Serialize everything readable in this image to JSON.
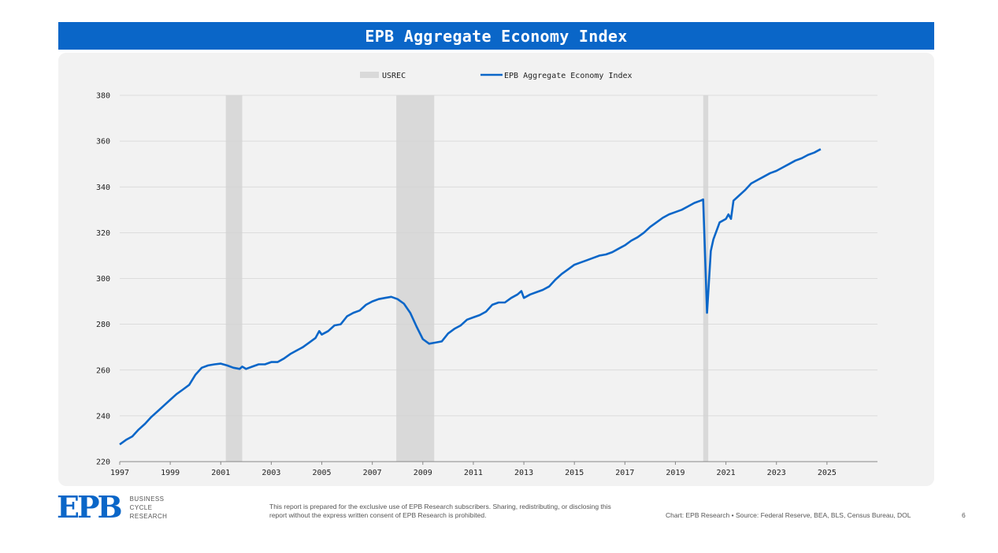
{
  "header": {
    "title": "EPB Aggregate Economy Index"
  },
  "footer": {
    "logo_text": "EPB",
    "logo_line1": "BUSINESS",
    "logo_line2": "CYCLE",
    "logo_line3": "RESEARCH",
    "disclaimer": "This report is prepared for the exclusive use of EPB Research subscribers. Sharing, redistributing, or disclosing this report without the express written consent of EPB Research is prohibited.",
    "source": "Chart: EPB Research  •  Source: Federal Reserve, BEA, BLS, Census Bureau, DOL",
    "page_number": "6"
  },
  "colors": {
    "header_bg": "#0a66c8",
    "line": "#0a66c8",
    "recession": "#d9d9d9",
    "panel_bg": "#f2f2f2"
  },
  "chart_data": {
    "type": "line",
    "title": "EPB Aggregate Economy Index",
    "xlabel": "",
    "ylabel": "",
    "xlim": [
      1997,
      2027
    ],
    "ylim": [
      220,
      380
    ],
    "yticks": [
      220,
      240,
      260,
      280,
      300,
      320,
      340,
      360,
      380
    ],
    "xticks": [
      1997,
      1999,
      2001,
      2003,
      2005,
      2007,
      2009,
      2011,
      2013,
      2015,
      2017,
      2019,
      2021,
      2023,
      2025
    ],
    "grid": "horizontal",
    "legend": {
      "position": "top-center",
      "entries": [
        "USREC",
        "EPB Aggregate Economy Index"
      ]
    },
    "recessions": {
      "name": "USREC",
      "periods": [
        [
          2001.2,
          2001.85
        ],
        [
          2007.95,
          2009.45
        ],
        [
          2020.1,
          2020.3
        ]
      ]
    },
    "series": [
      {
        "name": "EPB Aggregate Economy Index",
        "x": [
          1997.0,
          1997.25,
          1997.5,
          1997.75,
          1998.0,
          1998.25,
          1998.5,
          1998.75,
          1999.0,
          1999.25,
          1999.5,
          1999.75,
          2000.0,
          2000.25,
          2000.5,
          2000.75,
          2001.0,
          2001.25,
          2001.5,
          2001.75,
          2001.85,
          2002.0,
          2002.25,
          2002.5,
          2002.75,
          2003.0,
          2003.25,
          2003.5,
          2003.75,
          2004.0,
          2004.25,
          2004.5,
          2004.75,
          2004.9,
          2005.0,
          2005.25,
          2005.5,
          2005.75,
          2006.0,
          2006.25,
          2006.5,
          2006.75,
          2007.0,
          2007.25,
          2007.5,
          2007.75,
          2008.0,
          2008.25,
          2008.5,
          2008.75,
          2009.0,
          2009.25,
          2009.5,
          2009.75,
          2010.0,
          2010.25,
          2010.5,
          2010.75,
          2011.0,
          2011.25,
          2011.5,
          2011.75,
          2012.0,
          2012.25,
          2012.5,
          2012.75,
          2012.9,
          2013.0,
          2013.25,
          2013.5,
          2013.75,
          2014.0,
          2014.25,
          2014.5,
          2014.75,
          2015.0,
          2015.25,
          2015.5,
          2015.75,
          2016.0,
          2016.25,
          2016.5,
          2016.75,
          2017.0,
          2017.25,
          2017.5,
          2017.75,
          2018.0,
          2018.25,
          2018.5,
          2018.75,
          2019.0,
          2019.25,
          2019.5,
          2019.75,
          2020.0,
          2020.1,
          2020.25,
          2020.4,
          2020.5,
          2020.75,
          2021.0,
          2021.1,
          2021.2,
          2021.3,
          2021.5,
          2021.75,
          2022.0,
          2022.25,
          2022.5,
          2022.75,
          2023.0,
          2023.25,
          2023.5,
          2023.75,
          2024.0,
          2024.25,
          2024.5,
          2024.75
        ],
        "values": [
          227.5,
          229.5,
          231.0,
          234.0,
          236.5,
          239.5,
          242.0,
          244.5,
          247.0,
          249.5,
          251.5,
          253.5,
          258.0,
          261.0,
          262.0,
          262.5,
          262.8,
          262.0,
          261.0,
          260.5,
          261.5,
          260.5,
          261.5,
          262.5,
          262.5,
          263.5,
          263.5,
          265.0,
          267.0,
          268.5,
          270.0,
          272.0,
          274.0,
          277.0,
          275.5,
          277.0,
          279.5,
          280.0,
          283.5,
          285.0,
          286.0,
          288.5,
          290.0,
          291.0,
          291.5,
          292.0,
          291.0,
          289.0,
          285.0,
          279.0,
          273.5,
          271.5,
          272.0,
          272.5,
          276.0,
          278.0,
          279.5,
          282.0,
          283.0,
          284.0,
          285.5,
          288.5,
          289.5,
          289.5,
          291.5,
          293.0,
          294.5,
          291.5,
          293.0,
          294.0,
          295.0,
          296.5,
          299.5,
          302.0,
          304.0,
          306.0,
          307.0,
          308.0,
          309.0,
          310.0,
          310.5,
          311.5,
          313.0,
          314.5,
          316.5,
          318.0,
          320.0,
          322.5,
          324.5,
          326.5,
          328.0,
          329.0,
          330.0,
          331.5,
          333.0,
          334.0,
          334.5,
          285.0,
          312.0,
          317.0,
          324.5,
          326.0,
          328.0,
          326.0,
          334.0,
          336.0,
          338.5,
          341.5,
          343.0,
          344.5,
          346.0,
          347.0,
          348.5,
          350.0,
          351.5,
          352.5,
          354.0,
          355.0,
          356.5
        ]
      }
    ]
  }
}
